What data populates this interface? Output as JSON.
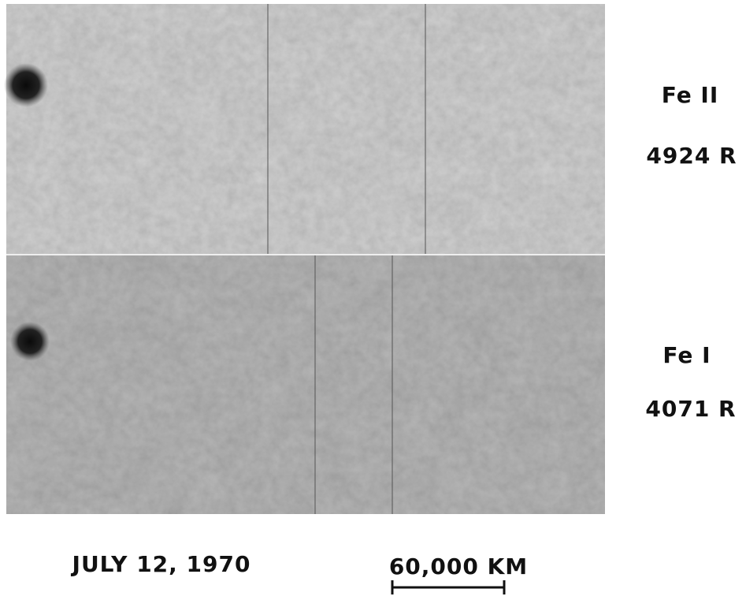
{
  "panels": [
    {
      "line": "Fe II",
      "wavelength": "4924 R"
    },
    {
      "line": "Fe I",
      "wavelength": "4071 R"
    }
  ],
  "date": "JULY 12, 1970",
  "scale": "60,000 KM"
}
